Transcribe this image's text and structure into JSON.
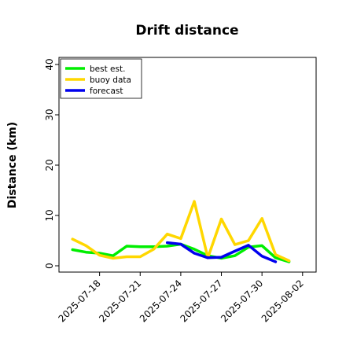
{
  "chart_data": {
    "type": "line",
    "title": "Drift distance",
    "xlabel": "",
    "ylabel": "Distance (km)",
    "ylim": [
      0,
      40
    ],
    "yticks": [
      "0",
      "10",
      "20",
      "30",
      "40"
    ],
    "x_range": [
      "2025-07-15",
      "2025-08-03"
    ],
    "xticks": [
      {
        "date": "2025-07-18",
        "label": "2025-07-18",
        "color": "#000000"
      },
      {
        "date": "2025-07-21",
        "label": "2025-07-21",
        "color": "#000000"
      },
      {
        "date": "2025-07-24",
        "label": "2025-07-24",
        "color": "#228b22"
      },
      {
        "date": "2025-07-27",
        "label": "2025-07-27",
        "color": "#000000"
      },
      {
        "date": "2025-07-30",
        "label": "2025-07-30",
        "color": "#000000"
      },
      {
        "date": "2025-08-02",
        "label": "2025-08-02",
        "color": "#000000"
      }
    ],
    "legend_position": "top-left",
    "grid": false,
    "series": [
      {
        "name": "best est.",
        "color": "#00ee00",
        "points": [
          [
            "2025-07-16",
            3.2
          ],
          [
            "2025-07-17",
            2.7
          ],
          [
            "2025-07-18",
            2.5
          ],
          [
            "2025-07-19",
            2.0
          ],
          [
            "2025-07-20",
            3.9
          ],
          [
            "2025-07-21",
            3.8
          ],
          [
            "2025-07-22",
            3.8
          ],
          [
            "2025-07-23",
            3.9
          ],
          [
            "2025-07-24",
            4.3
          ],
          [
            "2025-07-25",
            3.3
          ],
          [
            "2025-07-26",
            2.0
          ],
          [
            "2025-07-27",
            1.5
          ],
          [
            "2025-07-28",
            2.0
          ],
          [
            "2025-07-29",
            3.7
          ],
          [
            "2025-07-30",
            4.0
          ],
          [
            "2025-07-31",
            1.6
          ],
          [
            "2025-08-01",
            0.8
          ]
        ]
      },
      {
        "name": "buoy data",
        "color": "#ffd700",
        "points": [
          [
            "2025-07-16",
            5.3
          ],
          [
            "2025-07-17",
            4.0
          ],
          [
            "2025-07-18",
            2.1
          ],
          [
            "2025-07-19",
            1.5
          ],
          [
            "2025-07-20",
            1.8
          ],
          [
            "2025-07-21",
            1.8
          ],
          [
            "2025-07-22",
            3.3
          ],
          [
            "2025-07-23",
            6.3
          ],
          [
            "2025-07-24",
            5.4
          ],
          [
            "2025-07-25",
            12.8
          ],
          [
            "2025-07-26",
            1.6
          ],
          [
            "2025-07-27",
            9.3
          ],
          [
            "2025-07-28",
            4.2
          ],
          [
            "2025-07-29",
            5.0
          ],
          [
            "2025-07-30",
            9.4
          ],
          [
            "2025-07-31",
            2.2
          ],
          [
            "2025-08-01",
            1.0
          ]
        ]
      },
      {
        "name": "forecast",
        "color": "#0000ee",
        "points": [
          [
            "2025-07-23",
            4.6
          ],
          [
            "2025-07-24",
            4.3
          ],
          [
            "2025-07-25",
            2.5
          ],
          [
            "2025-07-26",
            1.6
          ],
          [
            "2025-07-27",
            1.7
          ],
          [
            "2025-07-28",
            2.9
          ],
          [
            "2025-07-29",
            4.1
          ],
          [
            "2025-07-30",
            1.9
          ],
          [
            "2025-07-31",
            0.8
          ]
        ]
      }
    ]
  }
}
